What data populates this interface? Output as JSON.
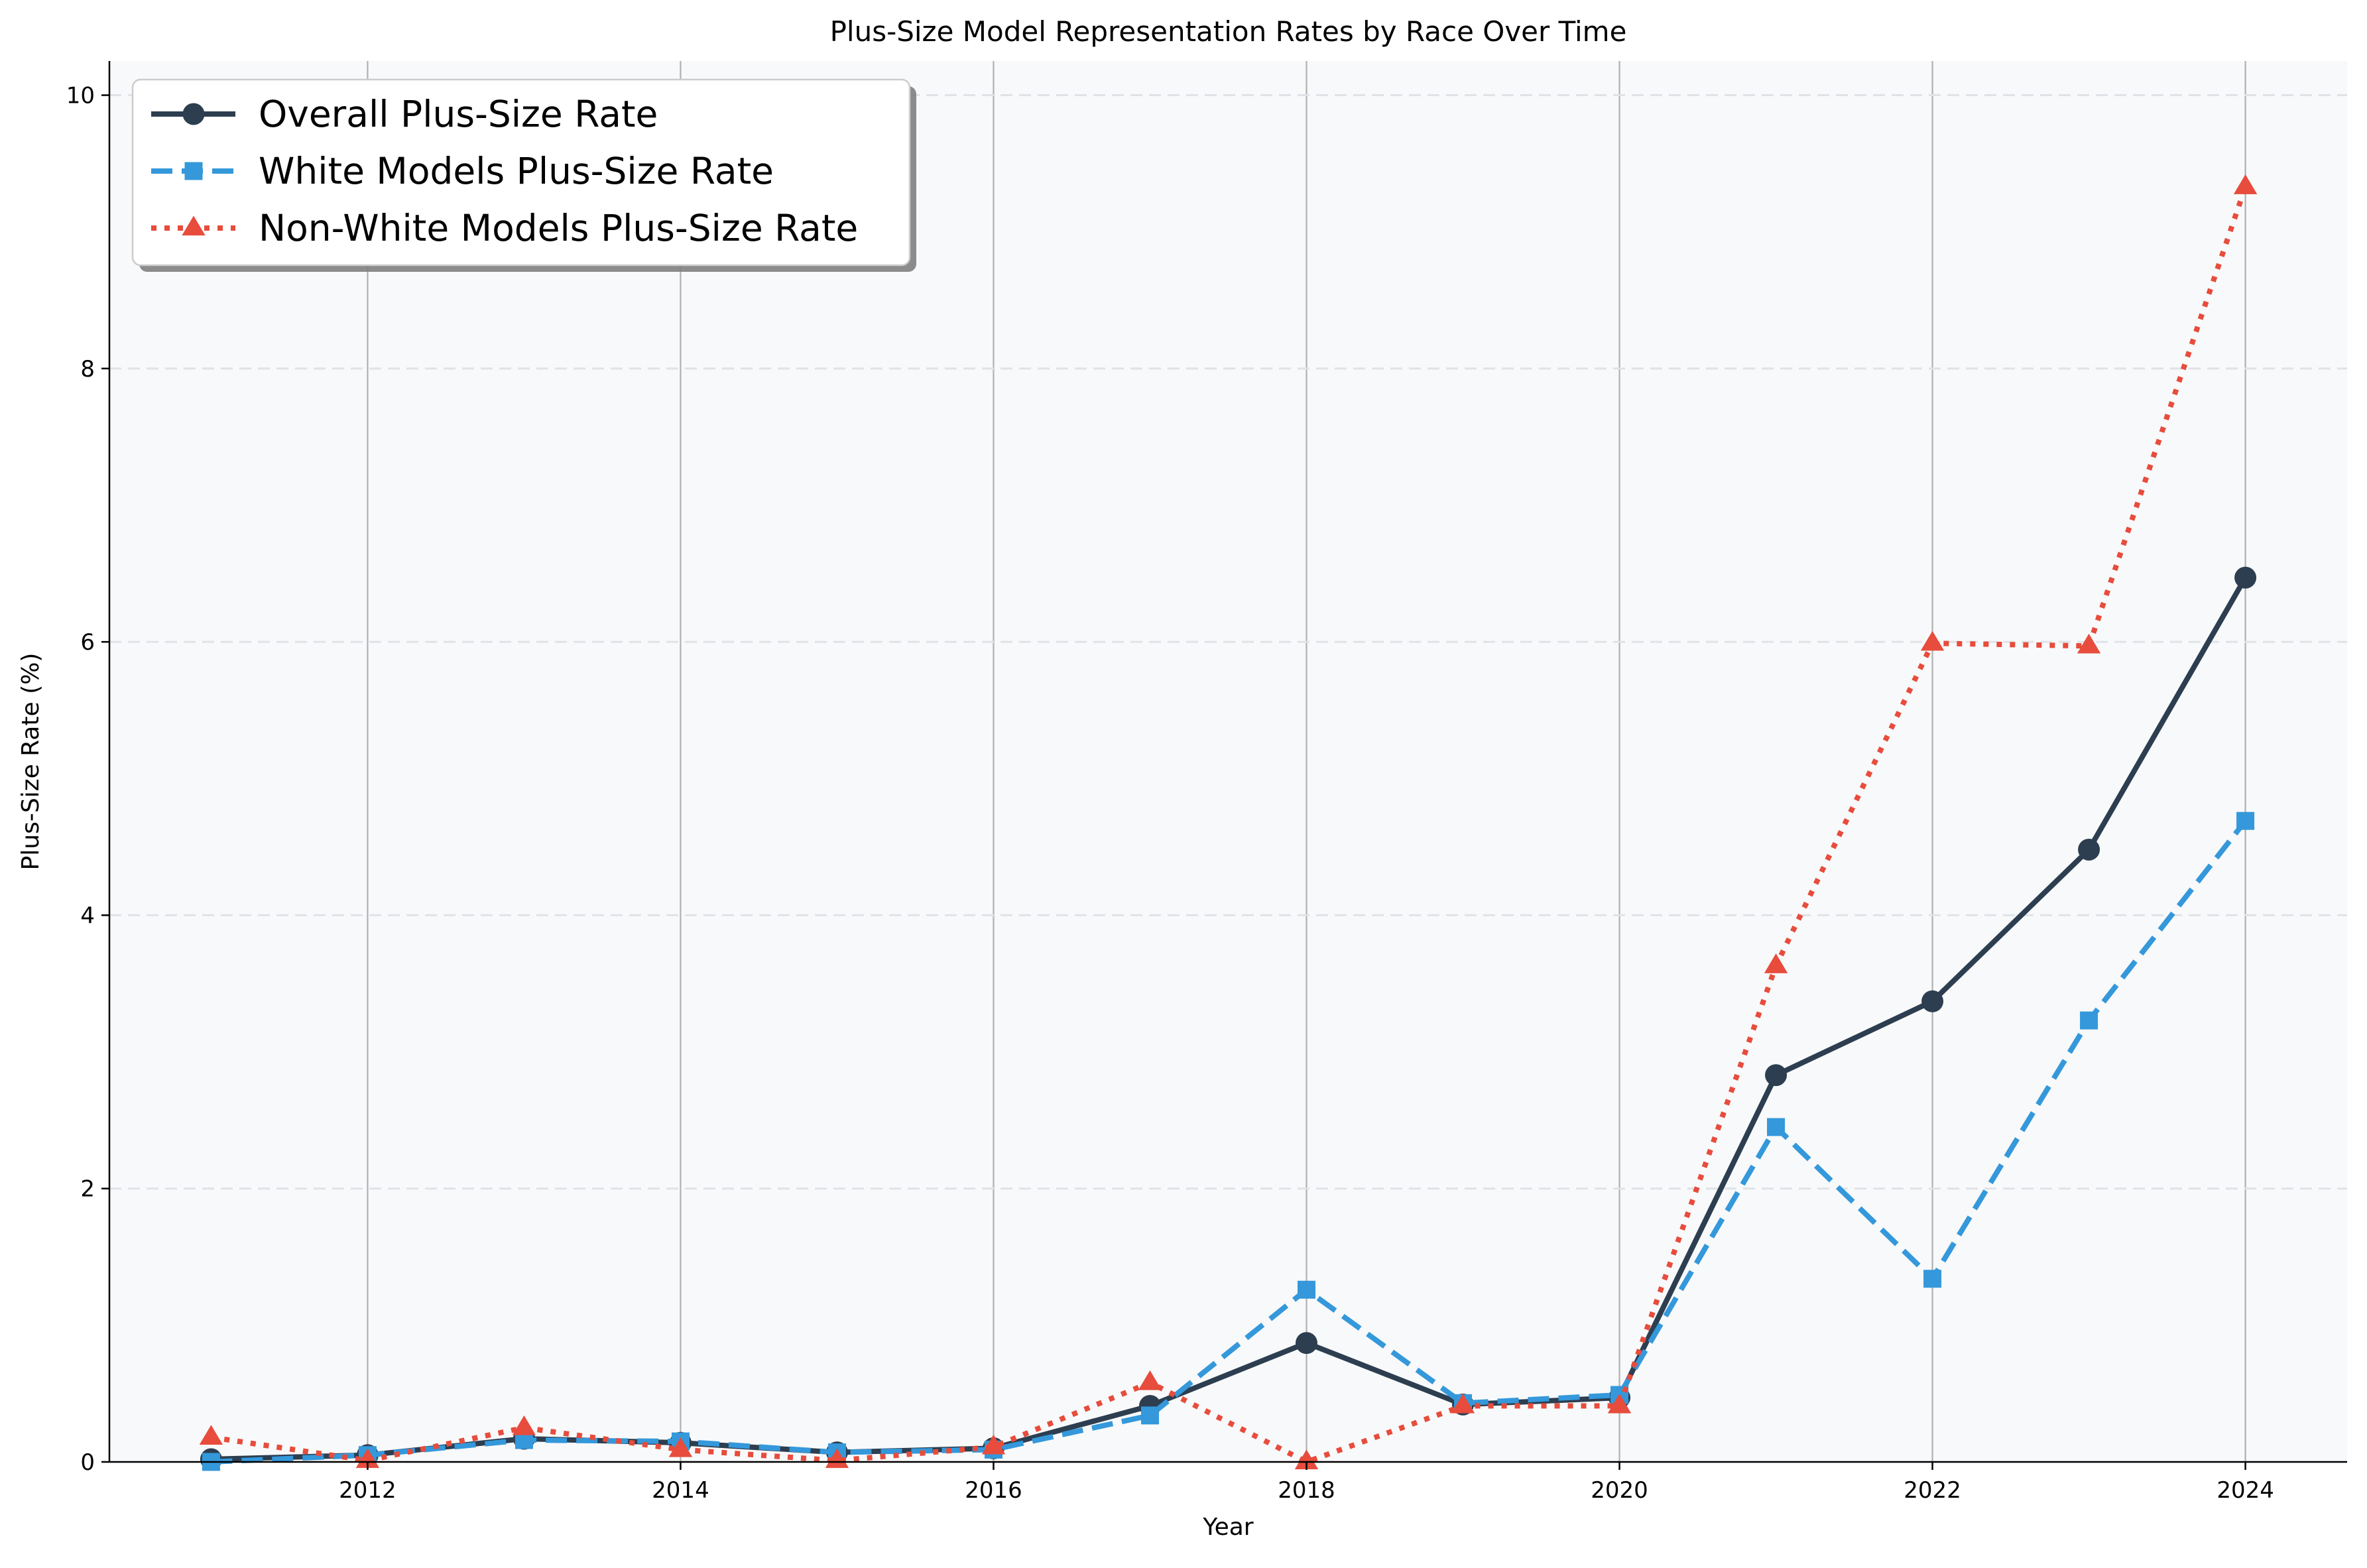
{
  "chart_data": {
    "type": "line",
    "title": "Plus-Size Model Representation Rates by Race Over Time",
    "xlabel": "Year",
    "ylabel": "Plus-Size Rate (%)",
    "x": [
      2011,
      2012,
      2013,
      2014,
      2015,
      2016,
      2017,
      2018,
      2019,
      2020,
      2021,
      2022,
      2023,
      2024
    ],
    "xlim": [
      2010.35,
      2024.65
    ],
    "ylim": [
      0,
      10.25
    ],
    "xticks": [
      2012,
      2014,
      2016,
      2018,
      2020,
      2022,
      2024
    ],
    "yticks": [
      0,
      2,
      4,
      6,
      8,
      10
    ],
    "grid": {
      "x": true,
      "y": true,
      "y_style": "dashed"
    },
    "legend_position": "top-left",
    "background": "#f8f9fa",
    "series": [
      {
        "name": "Overall Plus-Size Rate",
        "color": "#2c3e50",
        "style": "solid",
        "marker": "circle",
        "values": [
          0.02,
          0.05,
          0.17,
          0.14,
          0.07,
          0.1,
          0.41,
          0.87,
          0.42,
          0.47,
          2.83,
          3.37,
          4.48,
          6.47
        ]
      },
      {
        "name": "White Models Plus-Size Rate",
        "color": "#3498db",
        "style": "dashed",
        "marker": "square",
        "values": [
          0.0,
          0.05,
          0.16,
          0.15,
          0.07,
          0.09,
          0.34,
          1.26,
          0.43,
          0.49,
          2.45,
          1.34,
          3.23,
          4.69
        ]
      },
      {
        "name": "Non-White Models Plus-Size Rate",
        "color": "#e74c3c",
        "style": "dotted",
        "marker": "triangle",
        "values": [
          0.18,
          0.01,
          0.25,
          0.09,
          0.01,
          0.11,
          0.58,
          0.0,
          0.41,
          0.41,
          3.63,
          5.99,
          5.97,
          9.33
        ]
      }
    ]
  }
}
